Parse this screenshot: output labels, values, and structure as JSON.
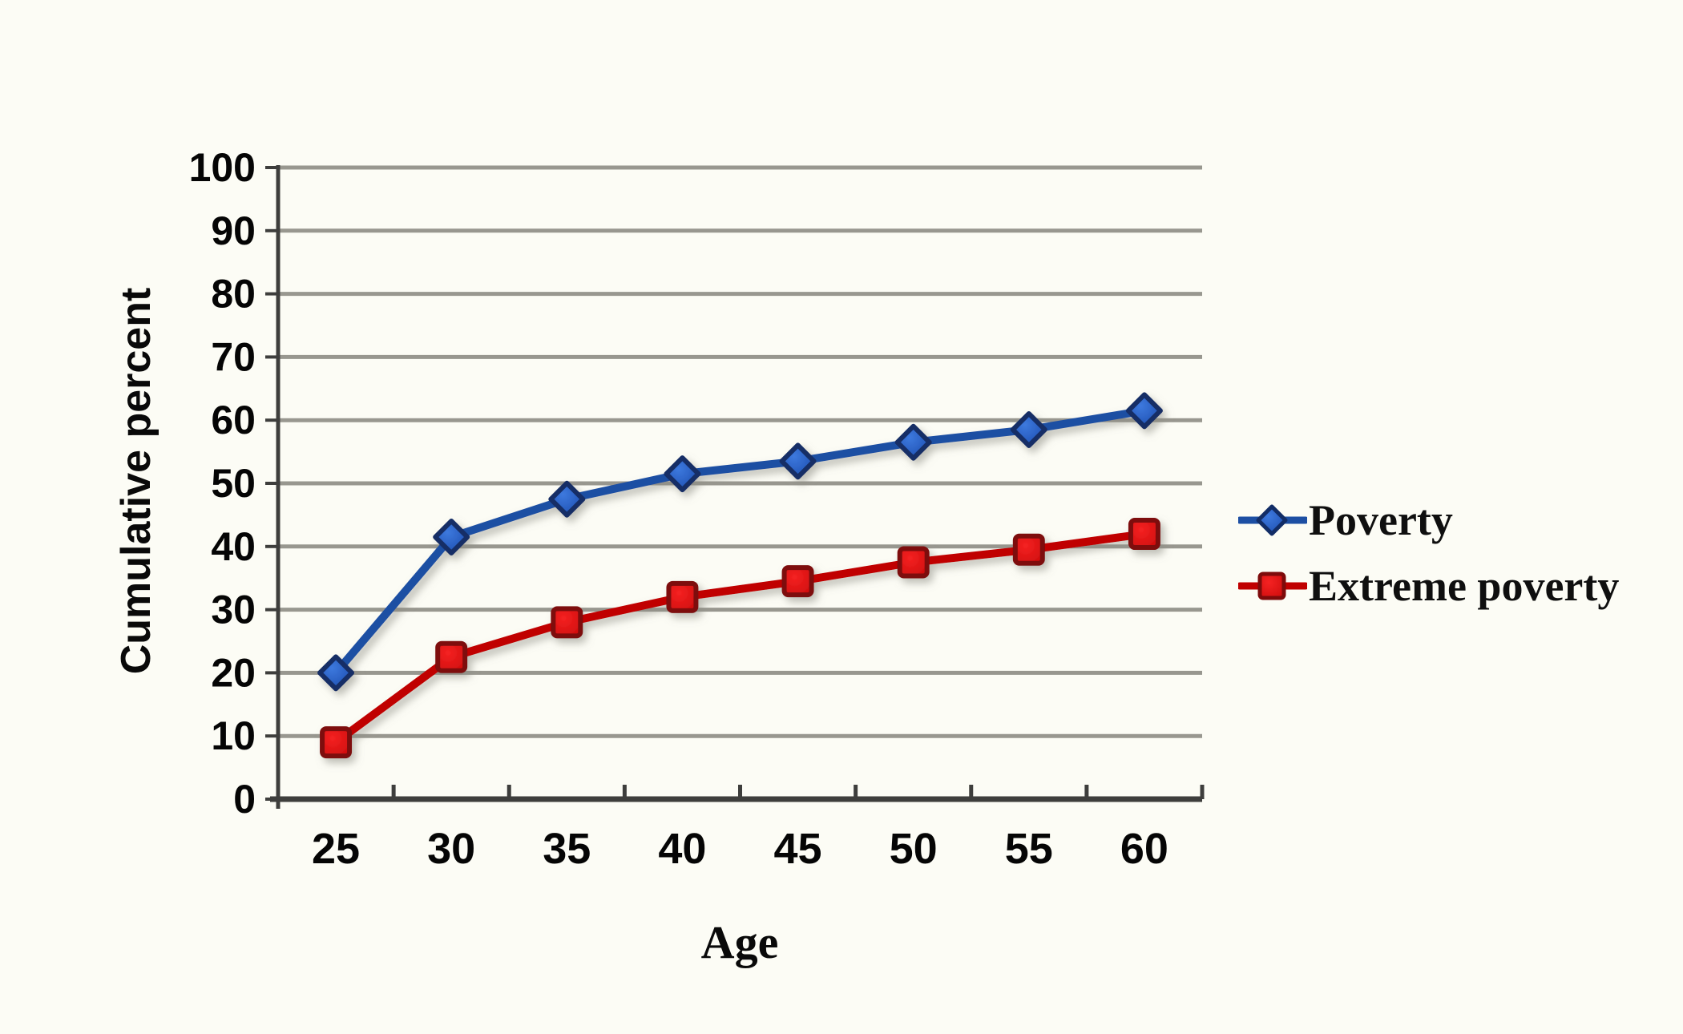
{
  "chart_data": {
    "type": "line",
    "title": "",
    "xlabel": "Age",
    "ylabel": "Cumulative percent",
    "x_categories": [
      25,
      30,
      35,
      40,
      45,
      50,
      55,
      60
    ],
    "series": [
      {
        "name": "Poverty",
        "marker": "diamond",
        "values": [
          20,
          41.5,
          47.5,
          51.5,
          53.5,
          56.5,
          58.5,
          61.5
        ],
        "line_color": "#1d4fa3",
        "marker_fill_inner": "#3d79de",
        "marker_fill_outer": "#1c4dae",
        "marker_stroke": "#122d66"
      },
      {
        "name": "Extreme poverty",
        "marker": "square",
        "values": [
          9,
          22.5,
          28,
          32,
          34.5,
          37.5,
          39.5,
          42
        ],
        "line_color": "#c00000",
        "marker_fill_inner": "#f52222",
        "marker_fill_outer": "#cf0d0d",
        "marker_stroke": "#7e0b0b"
      }
    ],
    "ylim": [
      0,
      100
    ],
    "ytick_step": 10,
    "grid": "horizontal-major",
    "legend_position": "right-middle"
  },
  "colors": {
    "background": "#fcfcf5",
    "gridline": "#98978f",
    "axis": "#3e3e3c",
    "tick_label": "#050505",
    "legend_text": "#0f0f0f"
  }
}
